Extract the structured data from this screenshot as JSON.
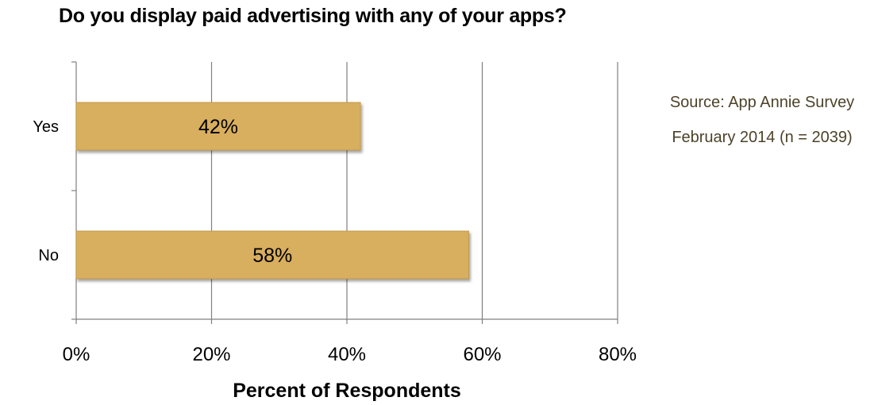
{
  "chart_data": {
    "type": "bar",
    "orientation": "horizontal",
    "title": "Do you display paid advertising with any of your apps?",
    "xlabel": "Percent of Respondents",
    "ylabel": "",
    "categories": [
      "Yes",
      "No"
    ],
    "values": [
      42,
      58
    ],
    "data_labels": [
      "42%",
      "58%"
    ],
    "xlim": [
      0,
      80
    ],
    "x_ticks": [
      0,
      20,
      40,
      60,
      80
    ],
    "x_tick_labels": [
      "0%",
      "20%",
      "40%",
      "60%",
      "80%"
    ],
    "grid": "vertical",
    "legend": "none",
    "annotations": [
      "Source: App Annie Survey",
      "February 2014 (n = 2039)"
    ],
    "colors": {
      "bar_fill": "#d8ae5e",
      "bar_outline": "#c49a4c",
      "grid": "#808080",
      "text": "#000000",
      "source_text": "#4d4329"
    }
  }
}
